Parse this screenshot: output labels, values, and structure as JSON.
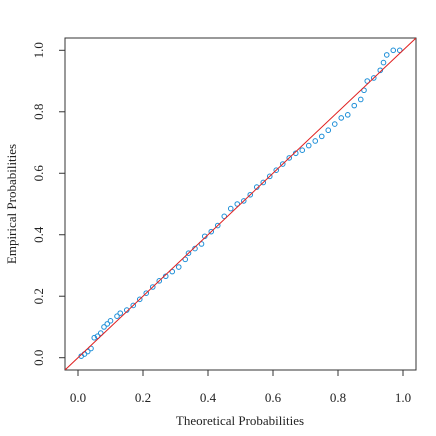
{
  "chart_data": {
    "type": "scatter",
    "x_label": "Theoretical Probabilities",
    "y_label": "Empirical Probabilities",
    "x": [
      0.01,
      0.02,
      0.03,
      0.04,
      0.05,
      0.06,
      0.07,
      0.08,
      0.09,
      0.1,
      0.12,
      0.13,
      0.15,
      0.17,
      0.19,
      0.21,
      0.23,
      0.25,
      0.27,
      0.29,
      0.31,
      0.33,
      0.34,
      0.36,
      0.38,
      0.39,
      0.41,
      0.43,
      0.45,
      0.47,
      0.49,
      0.51,
      0.53,
      0.55,
      0.57,
      0.59,
      0.61,
      0.63,
      0.65,
      0.67,
      0.69,
      0.71,
      0.73,
      0.75,
      0.77,
      0.79,
      0.81,
      0.83,
      0.85,
      0.87,
      0.88,
      0.89,
      0.91,
      0.93,
      0.94,
      0.95,
      0.97,
      0.99
    ],
    "values": [
      0.005,
      0.012,
      0.02,
      0.03,
      0.065,
      0.07,
      0.08,
      0.1,
      0.11,
      0.12,
      0.135,
      0.145,
      0.155,
      0.17,
      0.19,
      0.21,
      0.23,
      0.25,
      0.265,
      0.28,
      0.295,
      0.32,
      0.34,
      0.355,
      0.37,
      0.395,
      0.41,
      0.43,
      0.46,
      0.485,
      0.5,
      0.51,
      0.53,
      0.555,
      0.57,
      0.59,
      0.61,
      0.63,
      0.65,
      0.665,
      0.675,
      0.69,
      0.705,
      0.72,
      0.74,
      0.76,
      0.78,
      0.79,
      0.82,
      0.84,
      0.87,
      0.9,
      0.91,
      0.935,
      0.96,
      0.985,
      1.0,
      1.0
    ],
    "color": "#1e8fd8",
    "line_color": "#e02020",
    "xlim": [
      -0.04,
      1.04
    ],
    "ylim": [
      -0.04,
      1.04
    ],
    "xticks": [
      {
        "value": 0,
        "label": "0.0"
      },
      0.2,
      0.4,
      0.6,
      0.8,
      {
        "value": 1,
        "label": "1.0"
      }
    ],
    "yticks": [
      {
        "value": 0,
        "label": "0.0"
      },
      0.2,
      0.4,
      0.6,
      0.8,
      {
        "value": 1,
        "label": "1.0"
      }
    ]
  }
}
